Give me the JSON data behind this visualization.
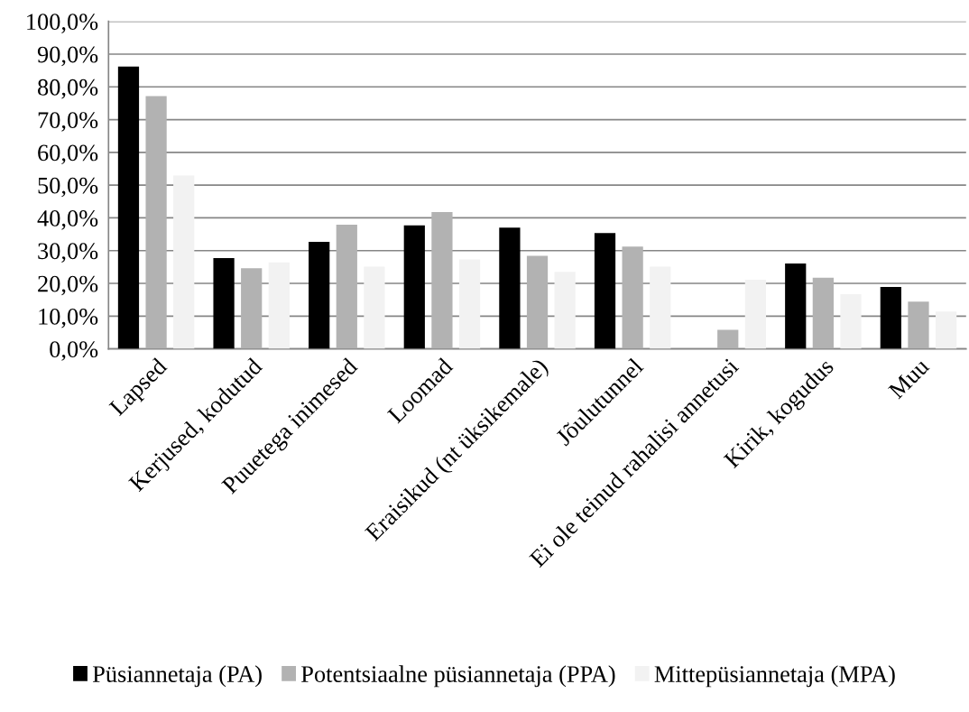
{
  "chart_data": {
    "type": "bar",
    "categories": [
      "Lapsed",
      "Kerjused, kodutud",
      "Puuetega inimesed",
      "Loomad",
      "Eraisikud (nt üksikemale)",
      "Jõulutunnel",
      "Ei ole teinud rahalisi annetusi",
      "Kirik, kogudus",
      "Muu"
    ],
    "series": [
      {
        "name": "Püsiannetaja (PA)",
        "color": "#000000",
        "values": [
          86.2,
          27.7,
          32.7,
          37.7,
          37.0,
          35.4,
          0,
          26.1,
          18.9
        ]
      },
      {
        "name": "Potentsiaalne püsiannetaja (PPA)",
        "color": "#b2b2b2",
        "values": [
          77.2,
          24.6,
          37.9,
          41.8,
          28.4,
          31.2,
          5.8,
          21.7,
          14.4
        ]
      },
      {
        "name": "Mittepüsiannetaja (MPA)",
        "color": "#f2f2f2",
        "values": [
          52.9,
          26.4,
          25.1,
          27.3,
          23.5,
          25.1,
          21.1,
          16.7,
          11.4
        ]
      }
    ],
    "ylim": [
      0,
      100
    ],
    "yticks": [
      {
        "value": 0,
        "label": "0,0%"
      },
      {
        "value": 10,
        "label": "10,0%"
      },
      {
        "value": 20,
        "label": "20,0%"
      },
      {
        "value": 30,
        "label": "30,0%"
      },
      {
        "value": 40,
        "label": "40,0%"
      },
      {
        "value": 50,
        "label": "50,0%"
      },
      {
        "value": 60,
        "label": "60,0%"
      },
      {
        "value": 70,
        "label": "70,0%"
      },
      {
        "value": 80,
        "label": "80,0%"
      },
      {
        "value": 90,
        "label": "90,0%"
      },
      {
        "value": 100,
        "label": "100,0%"
      }
    ],
    "grid": "y",
    "legend": "bottom"
  }
}
